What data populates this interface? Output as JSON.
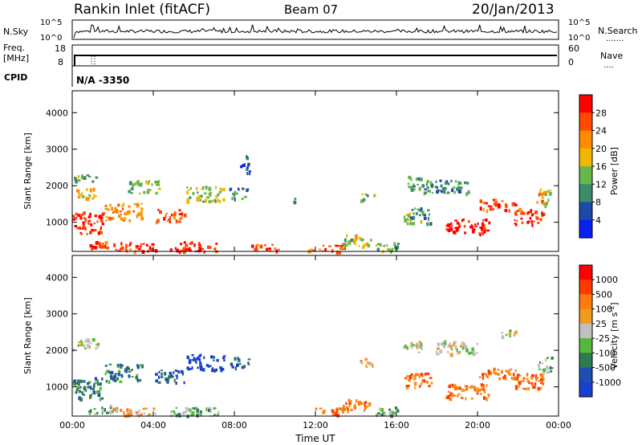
{
  "header": {
    "station": "Rankin Inlet (fitACF)",
    "beam": "Beam 07",
    "date": "20/Jan/2013"
  },
  "top_panels": {
    "nsky_label": "N.Sky",
    "nsky_ticks": [
      "10^5",
      "10^0"
    ],
    "nsearch_label": "N.Search",
    "nsearch_ticks": [
      "10^5",
      "10^0"
    ],
    "freq_label": "Freq.",
    "freq_unit": "[MHz]",
    "freq_ticks": [
      "18",
      "8"
    ],
    "nave_label": "Nave",
    "nave_ticks": [
      "60",
      "0"
    ],
    "cpid_label": "CPID",
    "cpid_value": "N/A -3350"
  },
  "colors": {
    "power_scale": [
      "#0a20f0",
      "#1e49a6",
      "#3c8c6c",
      "#66b84a",
      "#f0b800",
      "#ff8c00",
      "#ff4a00",
      "#ff0000"
    ],
    "velocity_scale": [
      "#1a3ecf",
      "#1e4fb0",
      "#2e7a52",
      "#55b83a",
      "#c0c0c0",
      "#f09a20",
      "#ff7a10",
      "#ff3a00",
      "#ff0000"
    ]
  },
  "chart_data": [
    {
      "type": "heatmap",
      "title": "Power",
      "ylabel": "Slant Range [km]",
      "ylim": [
        200,
        4600
      ],
      "yticks": [
        "1000",
        "2000",
        "3000",
        "4000"
      ],
      "xticks": [
        "00:00",
        "04:00",
        "08:00",
        "12:00",
        "16:00",
        "20:00",
        "00:00"
      ],
      "xlim_hours": [
        0,
        24
      ],
      "colorbar_label": "Power [dB]",
      "colorbar_ticks": [
        "28",
        "24",
        "20",
        "16",
        "12",
        "8",
        "4"
      ],
      "colorbar_range": [
        0,
        32
      ],
      "blobs": [
        {
          "t": 0.6,
          "r": 1000,
          "dt": 1.5,
          "dr": 500,
          "v": 29
        },
        {
          "t": 0.5,
          "r": 1800,
          "dt": 1.2,
          "dr": 250,
          "v": 18
        },
        {
          "t": 0.6,
          "r": 2250,
          "dt": 1.0,
          "dr": 180,
          "v": 12
        },
        {
          "t": 1.5,
          "r": 400,
          "dt": 1.2,
          "dr": 200,
          "v": 27
        },
        {
          "t": 3.0,
          "r": 350,
          "dt": 1.8,
          "dr": 200,
          "v": 28
        },
        {
          "t": 6.0,
          "r": 350,
          "dt": 2.0,
          "dr": 220,
          "v": 29
        },
        {
          "t": 9.5,
          "r": 320,
          "dt": 1.2,
          "dr": 150,
          "v": 27
        },
        {
          "t": 2.5,
          "r": 1300,
          "dt": 1.5,
          "dr": 400,
          "v": 22
        },
        {
          "t": 4.8,
          "r": 1200,
          "dt": 1.2,
          "dr": 300,
          "v": 26
        },
        {
          "t": 3.5,
          "r": 2000,
          "dt": 1.3,
          "dr": 300,
          "v": 14
        },
        {
          "t": 6.5,
          "r": 1800,
          "dt": 1.6,
          "dr": 350,
          "v": 15
        },
        {
          "t": 8.2,
          "r": 1800,
          "dt": 0.8,
          "dr": 250,
          "v": 10
        },
        {
          "t": 11.0,
          "r": 1600,
          "dt": 0.3,
          "dr": 120,
          "v": 10
        },
        {
          "t": 12.5,
          "r": 300,
          "dt": 1.5,
          "dr": 150,
          "v": 26
        },
        {
          "t": 14.0,
          "r": 500,
          "dt": 1.2,
          "dr": 300,
          "v": 16
        },
        {
          "t": 15.5,
          "r": 350,
          "dt": 1.0,
          "dr": 200,
          "v": 13
        },
        {
          "t": 14.5,
          "r": 1700,
          "dt": 0.6,
          "dr": 150,
          "v": 14
        },
        {
          "t": 17.0,
          "r": 1200,
          "dt": 1.2,
          "dr": 350,
          "v": 12
        },
        {
          "t": 16.8,
          "r": 2100,
          "dt": 0.8,
          "dr": 300,
          "v": 11
        },
        {
          "t": 19.5,
          "r": 900,
          "dt": 1.8,
          "dr": 350,
          "v": 30
        },
        {
          "t": 21.0,
          "r": 1500,
          "dt": 1.6,
          "dr": 250,
          "v": 27
        },
        {
          "t": 22.5,
          "r": 1200,
          "dt": 1.2,
          "dr": 400,
          "v": 28
        },
        {
          "t": 18.5,
          "r": 2000,
          "dt": 2.0,
          "dr": 300,
          "v": 10
        },
        {
          "t": 23.2,
          "r": 1700,
          "dt": 0.6,
          "dr": 400,
          "v": 20
        },
        {
          "t": 8.5,
          "r": 2600,
          "dt": 0.4,
          "dr": 400,
          "v": 5
        }
      ]
    },
    {
      "type": "heatmap",
      "title": "Velocity",
      "ylabel": "Slant Range [km]",
      "ylim": [
        200,
        4600
      ],
      "yticks": [
        "1000",
        "2000",
        "3000",
        "4000"
      ],
      "xticks": [
        "00:00",
        "04:00",
        "08:00",
        "12:00",
        "16:00",
        "20:00",
        "00:00"
      ],
      "xlim_hours": [
        0,
        24
      ],
      "xlabel": "Time UT",
      "colorbar_label": "Velocity [m s^-1]",
      "colorbar_ticks": [
        "1000",
        "500",
        "100",
        "25",
        "-25",
        "-100",
        "-500",
        "-1000"
      ],
      "blobs": [
        {
          "t": 0.6,
          "r": 1000,
          "dt": 1.5,
          "dr": 500,
          "v": 2
        },
        {
          "t": 0.6,
          "r": 2200,
          "dt": 1.2,
          "dr": 250,
          "v": 4
        },
        {
          "t": 1.5,
          "r": 400,
          "dt": 1.2,
          "dr": 200,
          "v": 3
        },
        {
          "t": 3.0,
          "r": 350,
          "dt": 1.8,
          "dr": 200,
          "v": 5
        },
        {
          "t": 6.0,
          "r": 350,
          "dt": 2.0,
          "dr": 220,
          "v": 3
        },
        {
          "t": 2.5,
          "r": 1400,
          "dt": 1.5,
          "dr": 400,
          "v": 2
        },
        {
          "t": 4.8,
          "r": 1300,
          "dt": 1.2,
          "dr": 300,
          "v": 1
        },
        {
          "t": 6.5,
          "r": 1700,
          "dt": 1.6,
          "dr": 350,
          "v": 0
        },
        {
          "t": 8.2,
          "r": 1700,
          "dt": 0.8,
          "dr": 250,
          "v": 1
        },
        {
          "t": 12.5,
          "r": 350,
          "dt": 1.5,
          "dr": 150,
          "v": 6
        },
        {
          "t": 14.0,
          "r": 500,
          "dt": 1.2,
          "dr": 300,
          "v": 6
        },
        {
          "t": 15.5,
          "r": 350,
          "dt": 1.0,
          "dr": 200,
          "v": 3
        },
        {
          "t": 14.5,
          "r": 1700,
          "dt": 0.6,
          "dr": 150,
          "v": 5
        },
        {
          "t": 16.8,
          "r": 2100,
          "dt": 0.8,
          "dr": 300,
          "v": 4
        },
        {
          "t": 17.0,
          "r": 1200,
          "dt": 1.2,
          "dr": 350,
          "v": 6
        },
        {
          "t": 19.5,
          "r": 900,
          "dt": 1.8,
          "dr": 350,
          "v": 6
        },
        {
          "t": 21.0,
          "r": 1400,
          "dt": 1.6,
          "dr": 250,
          "v": 6
        },
        {
          "t": 22.5,
          "r": 1200,
          "dt": 1.2,
          "dr": 400,
          "v": 6
        },
        {
          "t": 19.0,
          "r": 2100,
          "dt": 1.8,
          "dr": 300,
          "v": 4
        },
        {
          "t": 23.3,
          "r": 1600,
          "dt": 0.6,
          "dr": 400,
          "v": 3
        },
        {
          "t": 21.5,
          "r": 2500,
          "dt": 0.6,
          "dr": 200,
          "v": 4
        }
      ]
    }
  ]
}
